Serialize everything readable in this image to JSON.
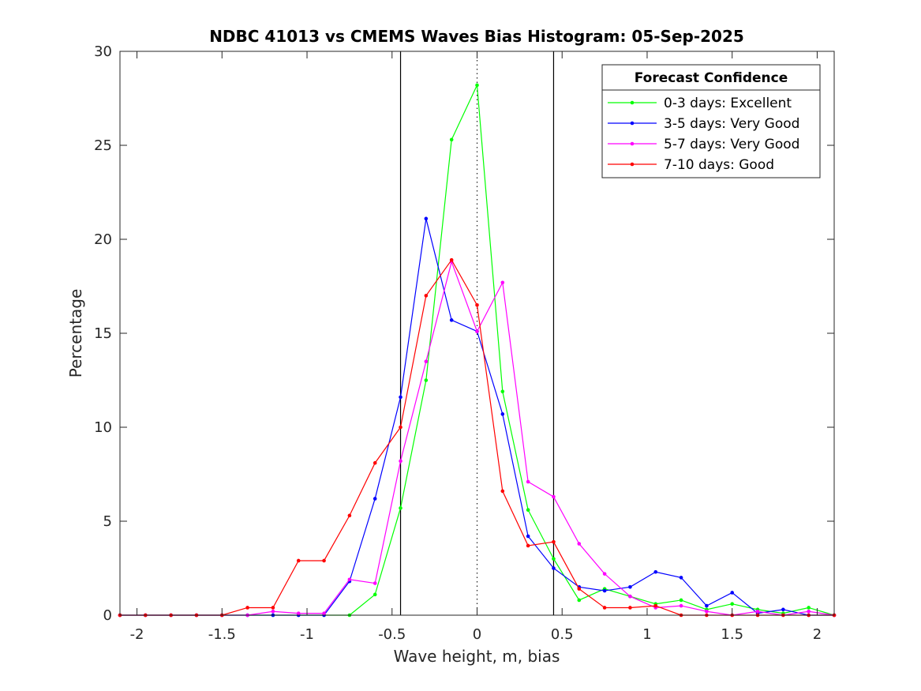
{
  "chart_data": {
    "type": "line",
    "title": "NDBC 41013 vs CMEMS Waves Bias Histogram: 05-Sep-2025",
    "xlabel": "Wave height, m, bias",
    "ylabel": "Percentage",
    "xlim": [
      -2.1,
      2.1
    ],
    "ylim": [
      0,
      30
    ],
    "xticks": [
      -2,
      -1.5,
      -1,
      -0.5,
      0,
      0.5,
      1,
      1.5,
      2
    ],
    "xtick_labels": [
      "-2",
      "-1.5",
      "-1",
      "-0.5",
      "0",
      "0.5",
      "1",
      "1.5",
      "2"
    ],
    "yticks": [
      0,
      5,
      10,
      15,
      20,
      25,
      30
    ],
    "ytick_labels": [
      "0",
      "5",
      "10",
      "15",
      "20",
      "25",
      "30"
    ],
    "grid": false,
    "reference_lines": {
      "solid_vertical": [
        -0.45,
        0.45
      ],
      "dotted_vertical": [
        0
      ]
    },
    "legend": {
      "title": "Forecast Confidence",
      "position": "top-right"
    },
    "x": [
      -2.1,
      -1.95,
      -1.8,
      -1.65,
      -1.5,
      -1.35,
      -1.2,
      -1.05,
      -0.9,
      -0.75,
      -0.6,
      -0.45,
      -0.3,
      -0.15,
      0,
      0.15,
      0.3,
      0.45,
      0.6,
      0.75,
      0.9,
      1.05,
      1.2,
      1.35,
      1.5,
      1.65,
      1.8,
      1.95,
      2.1
    ],
    "series": [
      {
        "name": "0-3 days: Excellent",
        "color": "#00ff00",
        "values": [
          0,
          0,
          0,
          0,
          0,
          0,
          0,
          0,
          0,
          0,
          1.1,
          5.7,
          12.5,
          25.3,
          28.2,
          11.9,
          5.6,
          3.0,
          0.8,
          1.4,
          1.0,
          0.6,
          0.8,
          0.3,
          0.6,
          0.3,
          0.1,
          0.4,
          0
        ]
      },
      {
        "name": "3-5 days: Very Good",
        "color": "#0000ff",
        "values": [
          0,
          0,
          0,
          0,
          0,
          0,
          0,
          0,
          0,
          1.8,
          6.2,
          11.6,
          21.1,
          15.7,
          15.1,
          10.7,
          4.2,
          2.5,
          1.5,
          1.3,
          1.5,
          2.3,
          2.0,
          0.5,
          1.2,
          0.1,
          0.3,
          0,
          0
        ]
      },
      {
        "name": "5-7 days: Very Good",
        "color": "#ff00ff",
        "values": [
          0,
          0,
          0,
          0,
          0,
          0,
          0.2,
          0.1,
          0.1,
          1.9,
          1.7,
          8.2,
          13.5,
          18.8,
          15.1,
          17.7,
          7.1,
          6.3,
          3.8,
          2.2,
          1.0,
          0.4,
          0.5,
          0.2,
          0,
          0.2,
          0,
          0.2,
          0
        ]
      },
      {
        "name": "7-10 days: Good",
        "color": "#ff0000",
        "values": [
          0,
          0,
          0,
          0,
          0,
          0.4,
          0.4,
          2.9,
          2.9,
          5.3,
          8.1,
          10.0,
          17.0,
          18.9,
          16.5,
          6.6,
          3.7,
          3.9,
          1.4,
          0.4,
          0.4,
          0.5,
          0,
          0,
          0,
          0,
          0,
          0,
          0
        ]
      }
    ]
  }
}
